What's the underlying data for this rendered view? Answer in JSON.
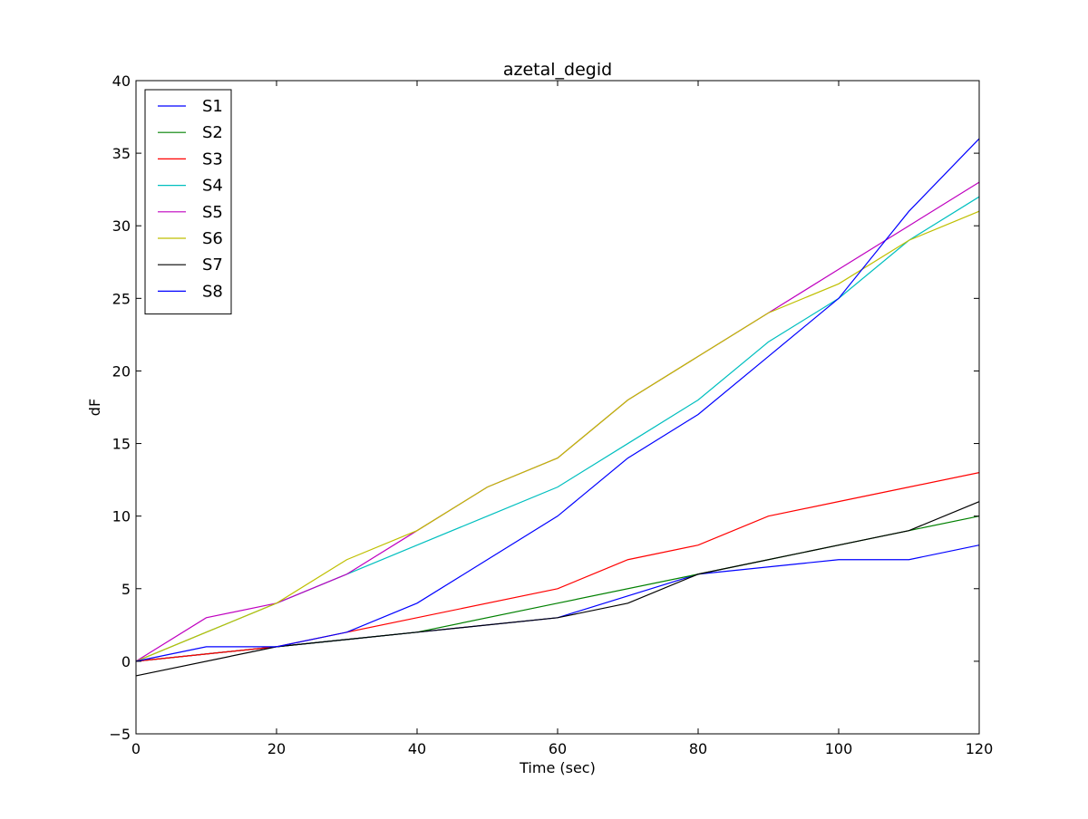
{
  "chart_data": {
    "type": "line",
    "title": "azetal_degid",
    "xlabel": "Time (sec)",
    "ylabel": "dF",
    "xlim": [
      0,
      120
    ],
    "ylim": [
      -5,
      40
    ],
    "xticks": [
      0,
      20,
      40,
      60,
      80,
      100,
      120
    ],
    "yticks": [
      -5,
      0,
      5,
      10,
      15,
      20,
      25,
      30,
      35,
      40
    ],
    "xtick_labels": [
      "0",
      "20",
      "40",
      "60",
      "80",
      "100",
      "120"
    ],
    "ytick_labels": [
      "−5",
      "0",
      "5",
      "10",
      "15",
      "20",
      "25",
      "30",
      "35",
      "40"
    ],
    "grid": false,
    "legend_position": "upper-left",
    "series": [
      {
        "name": "S1",
        "color": "#0000ff",
        "points": [
          [
            0,
            0
          ],
          [
            20,
            1
          ],
          [
            40,
            2
          ],
          [
            60,
            3
          ],
          [
            80,
            6
          ],
          [
            100,
            7
          ],
          [
            110,
            7
          ],
          [
            120,
            8
          ]
        ]
      },
      {
        "name": "S2",
        "color": "#008000",
        "points": [
          [
            0,
            0
          ],
          [
            20,
            1
          ],
          [
            40,
            2
          ],
          [
            60,
            4
          ],
          [
            80,
            6
          ],
          [
            90,
            7
          ],
          [
            100,
            8
          ],
          [
            110,
            9
          ],
          [
            120,
            10
          ]
        ]
      },
      {
        "name": "S3",
        "color": "#ff0000",
        "points": [
          [
            0,
            0
          ],
          [
            20,
            1
          ],
          [
            40,
            3
          ],
          [
            60,
            5
          ],
          [
            70,
            7
          ],
          [
            80,
            8
          ],
          [
            90,
            10
          ],
          [
            100,
            11
          ],
          [
            110,
            12
          ],
          [
            120,
            13
          ]
        ]
      },
      {
        "name": "S4",
        "color": "#00bfbf",
        "points": [
          [
            0,
            0
          ],
          [
            10,
            2
          ],
          [
            20,
            4
          ],
          [
            30,
            6
          ],
          [
            40,
            8
          ],
          [
            50,
            10
          ],
          [
            60,
            12
          ],
          [
            70,
            15
          ],
          [
            80,
            18
          ],
          [
            90,
            22
          ],
          [
            100,
            25
          ],
          [
            110,
            29
          ],
          [
            120,
            32
          ]
        ]
      },
      {
        "name": "S5",
        "color": "#bf00bf",
        "points": [
          [
            0,
            0
          ],
          [
            10,
            3
          ],
          [
            20,
            4
          ],
          [
            30,
            6
          ],
          [
            40,
            9
          ],
          [
            50,
            12
          ],
          [
            60,
            14
          ],
          [
            70,
            18
          ],
          [
            80,
            21
          ],
          [
            90,
            24
          ],
          [
            100,
            27
          ],
          [
            110,
            30
          ],
          [
            120,
            33
          ]
        ]
      },
      {
        "name": "S6",
        "color": "#bfbf00",
        "points": [
          [
            0,
            0
          ],
          [
            10,
            2
          ],
          [
            20,
            4
          ],
          [
            30,
            7
          ],
          [
            40,
            9
          ],
          [
            50,
            12
          ],
          [
            60,
            14
          ],
          [
            70,
            18
          ],
          [
            80,
            21
          ],
          [
            90,
            24
          ],
          [
            100,
            26
          ],
          [
            110,
            29
          ],
          [
            120,
            31
          ]
        ]
      },
      {
        "name": "S7",
        "color": "#000000",
        "points": [
          [
            0,
            -1
          ],
          [
            20,
            1
          ],
          [
            40,
            2
          ],
          [
            60,
            3
          ],
          [
            70,
            4
          ],
          [
            80,
            6
          ],
          [
            100,
            8
          ],
          [
            110,
            9
          ],
          [
            120,
            11
          ]
        ]
      },
      {
        "name": "S8",
        "color": "#0000ff",
        "points": [
          [
            0,
            0
          ],
          [
            10,
            1
          ],
          [
            20,
            1
          ],
          [
            30,
            2
          ],
          [
            40,
            4
          ],
          [
            50,
            7
          ],
          [
            60,
            10
          ],
          [
            70,
            14
          ],
          [
            80,
            17
          ],
          [
            90,
            21
          ],
          [
            100,
            25
          ],
          [
            110,
            31
          ],
          [
            120,
            36
          ]
        ]
      }
    ]
  }
}
